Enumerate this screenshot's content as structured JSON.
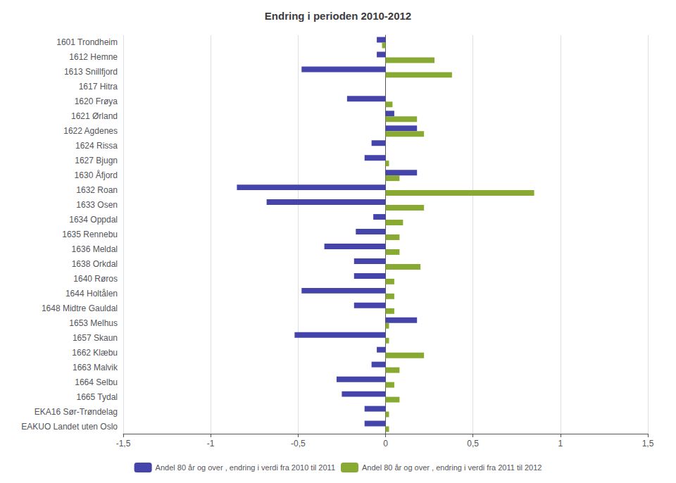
{
  "chart_data": {
    "type": "bar",
    "orientation": "horizontal",
    "title": "Endring i perioden 2010-2012",
    "categories": [
      "1601 Trondheim",
      "1612 Hemne",
      "1613 Snillfjord",
      "1617 Hitra",
      "1620 Frøya",
      "1621 Ørland",
      "1622 Agdenes",
      "1624 Rissa",
      "1627 Bjugn",
      "1630 Åfjord",
      "1632 Roan",
      "1633 Osen",
      "1634 Oppdal",
      "1635 Rennebu",
      "1636 Meldal",
      "1638 Orkdal",
      "1640 Røros",
      "1644 Holtålen",
      "1648 Midtre Gauldal",
      "1653 Melhus",
      "1657 Skaun",
      "1662 Klæbu",
      "1663 Malvik",
      "1664 Selbu",
      "1665 Tydal",
      "EKA16 Sør-Trøndelag",
      "EAKUO Landet uten Oslo"
    ],
    "series": [
      {
        "name": "Andel 80 år og over , endring i verdi fra 2010 til 2011",
        "color": "#4444aa",
        "values": [
          -0.05,
          -0.05,
          -0.48,
          0.0,
          -0.22,
          0.05,
          0.18,
          -0.08,
          -0.12,
          0.18,
          -0.85,
          -0.68,
          -0.07,
          -0.17,
          -0.35,
          -0.18,
          -0.18,
          -0.48,
          -0.18,
          0.18,
          -0.52,
          -0.05,
          -0.08,
          -0.28,
          -0.25,
          -0.12,
          -0.12
        ]
      },
      {
        "name": "Andel 80 år og over , endring i verdi fra 2011 til 2012",
        "color": "#88aa33",
        "values": [
          -0.02,
          0.28,
          0.38,
          0.0,
          0.04,
          0.18,
          0.22,
          0.0,
          0.02,
          0.08,
          0.85,
          0.22,
          0.1,
          0.08,
          0.08,
          0.2,
          0.05,
          0.05,
          0.05,
          0.02,
          0.02,
          0.22,
          0.08,
          0.05,
          0.08,
          0.02,
          0.02
        ]
      }
    ],
    "xlim": [
      -1.5,
      1.5
    ],
    "xticks": [
      {
        "value": -1.5,
        "label": "-1,5"
      },
      -1,
      {
        "value": -0.5,
        "label": "-0,5"
      },
      0,
      {
        "value": 0.5,
        "label": "0,5"
      },
      1,
      {
        "value": 1.5,
        "label": "1,5"
      }
    ],
    "grid": true,
    "legend": "bottom"
  }
}
